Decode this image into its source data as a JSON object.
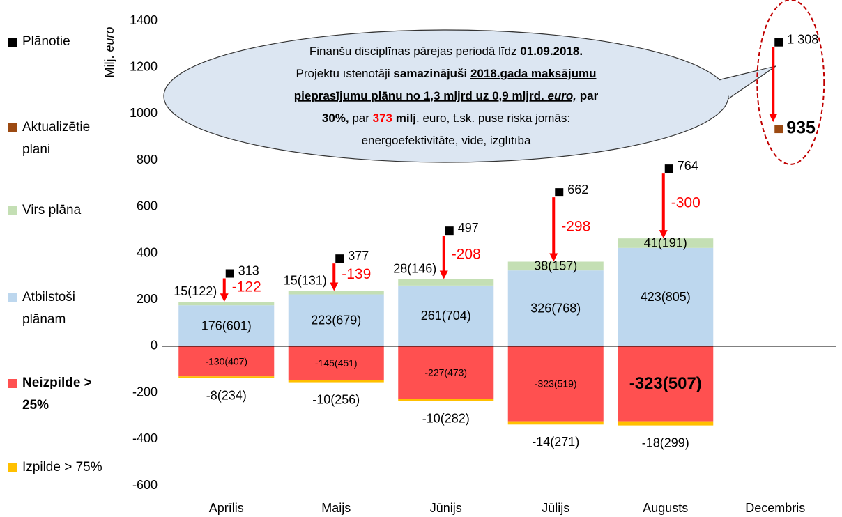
{
  "chart_data": {
    "type": "bar",
    "stacked": true,
    "y_label": {
      "text": "Milj.",
      "italic": "euro"
    },
    "categories": [
      "Aprīlis",
      "Maijs",
      "Jūnijs",
      "Jūlijs",
      "Augusts",
      "Decembris"
    ],
    "ylim": [
      -600,
      1400
    ],
    "yticks": [
      -600,
      -400,
      -200,
      0,
      200,
      400,
      600,
      800,
      1000,
      1200,
      1400
    ],
    "grid": false,
    "legend": "left",
    "series": [
      {
        "name": "Plānotie",
        "kind": "marker",
        "color": "#000000",
        "values": [
          313,
          377,
          497,
          662,
          764,
          1308
        ],
        "value_labels": [
          "313",
          "377",
          "497",
          "662",
          "764",
          "1 308"
        ]
      },
      {
        "name": "Aktualizētie plani",
        "kind": "marker",
        "color": "#9c4a12",
        "values": [
          null,
          null,
          null,
          null,
          null,
          935
        ],
        "label_bold": [
          false,
          false,
          false,
          false,
          false,
          true
        ]
      },
      {
        "name": "Virs plāna",
        "kind": "bar",
        "color": "#c4dfb4",
        "values": [
          15,
          15,
          28,
          38,
          41,
          null
        ],
        "value_labels": [
          "15(122)",
          "15(131)",
          "28(146)",
          "38(157)",
          "41(191)",
          null
        ]
      },
      {
        "name": "Atbilstoši plānam",
        "kind": "bar",
        "color": "#bdd7ee",
        "values": [
          176,
          223,
          261,
          326,
          423,
          null
        ],
        "value_labels": [
          "176(601)",
          "223(679)",
          "261(704)",
          "326(768)",
          "423(805)",
          null
        ]
      },
      {
        "name": "Neizpilde > 25%",
        "kind": "bar",
        "color": "#ff5050",
        "legend_bold": true,
        "values": [
          -130,
          -145,
          -227,
          -323,
          -323,
          null
        ],
        "value_labels": [
          "-130(407)",
          "-145(451)",
          "-227(473)",
          "-323(519)",
          "-323(507)",
          null
        ],
        "label_bold": [
          false,
          false,
          false,
          false,
          true,
          false
        ]
      },
      {
        "name": "Izpilde > 75%",
        "kind": "bar",
        "color": "#ffc000",
        "values": [
          -8,
          -10,
          -10,
          -14,
          -18,
          null
        ],
        "value_labels": [
          "-8(234)",
          "-10(256)",
          "-10(282)",
          "-14(271)",
          "-18(299)",
          null
        ]
      }
    ],
    "arrows": {
      "color": "#ff0000",
      "values": [
        -122,
        -139,
        -208,
        -298,
        -300,
        null
      ]
    },
    "callout": {
      "lines": [
        [
          {
            "text": "Finanšu disciplīnas pārejas periodā līdz ",
            "style": "normal"
          },
          {
            "text": "01.09.2018.",
            "style": "bold"
          }
        ],
        [
          {
            "text": "Projektu īstenotāji ",
            "style": "normal"
          },
          {
            "text": "samazinājuši ",
            "style": "bold"
          },
          {
            "text": "2018.gada maksājumu",
            "style": "bold-underline"
          }
        ],
        [
          {
            "text": "pieprasījumu plānu no 1,3 mljrd uz 0,9 mljrd. ",
            "style": "bold-underline"
          },
          {
            "text": "euro,",
            "style": "bold-italic-underline"
          },
          {
            "text": " par",
            "style": "bold"
          }
        ],
        [
          {
            "text": "30%,",
            "style": "bold"
          },
          {
            "text": " par ",
            "style": "normal"
          },
          {
            "text": "373",
            "style": "bold-red"
          },
          {
            "text": " milj",
            "style": "bold"
          },
          {
            "text": ". euro, t.sk. puse riska jomās:",
            "style": "normal"
          }
        ],
        [
          {
            "text": "energoefektivitāte, vide, izglītība",
            "style": "normal"
          }
        ]
      ]
    }
  }
}
